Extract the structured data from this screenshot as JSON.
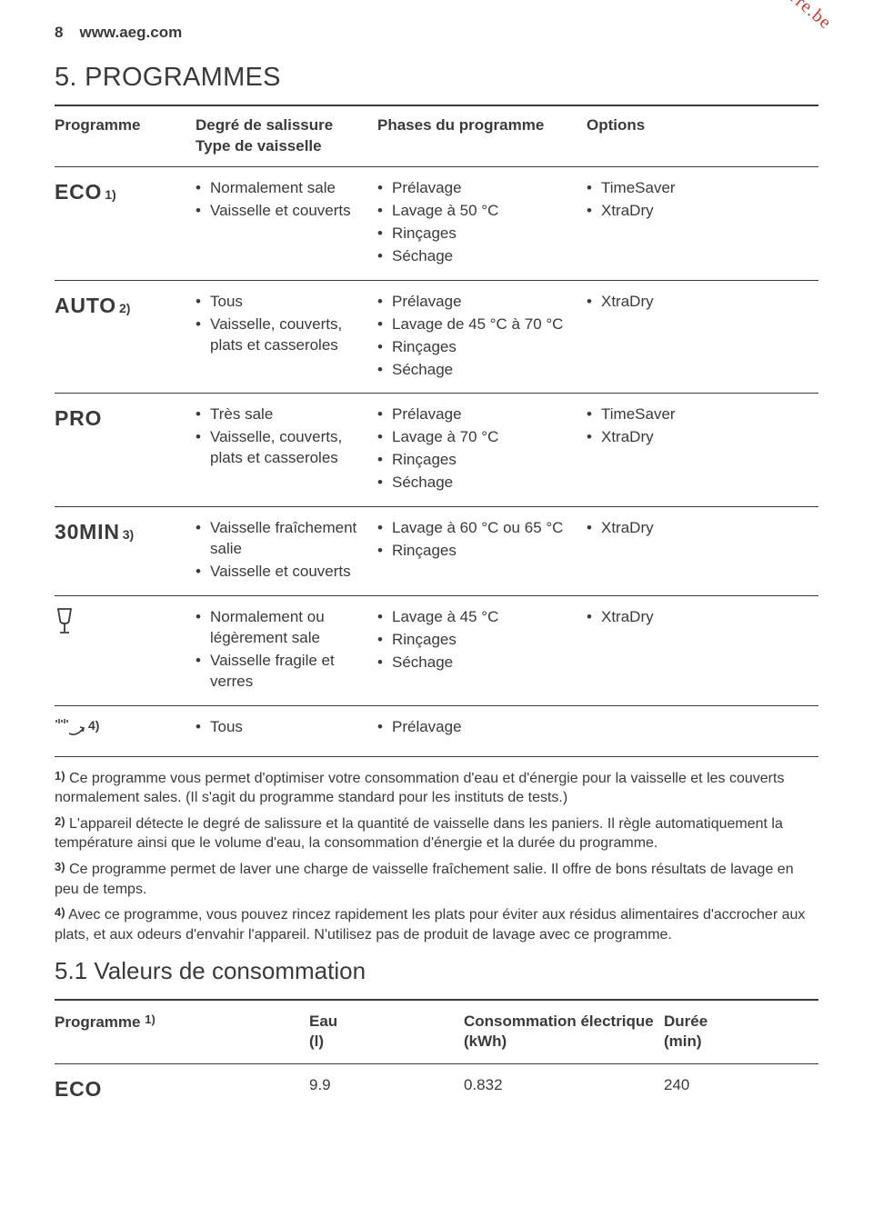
{
  "header": {
    "page_number": "8",
    "site": "www.aeg.com"
  },
  "watermark": "Downloaded from www.vandenborre.be",
  "section_title": "5. PROGRAMMES",
  "table1": {
    "headers": {
      "program": "Programme",
      "soil": "Degré de salissure\nType de vaisselle",
      "phases": "Phases du programme",
      "options": "Options"
    },
    "rows": [
      {
        "name": "ECO",
        "sup": "1)",
        "soil": [
          "Normalement sale",
          "Vaisselle et couverts"
        ],
        "phases": [
          "Prélavage",
          "Lavage à 50 °C",
          "Rinçages",
          "Séchage"
        ],
        "options": [
          "TimeSaver",
          "XtraDry"
        ]
      },
      {
        "name": "AUTO",
        "sup": "2)",
        "soil": [
          "Tous",
          "Vaisselle, couverts, plats et casseroles"
        ],
        "phases": [
          "Prélavage",
          "Lavage de 45 °C à 70 °C",
          "Rinçages",
          "Séchage"
        ],
        "options": [
          "XtraDry"
        ]
      },
      {
        "name": "PRO",
        "sup": "",
        "soil": [
          "Très sale",
          "Vaisselle, couverts, plats et casseroles"
        ],
        "phases": [
          "Prélavage",
          "Lavage à 70 °C",
          "Rinçages",
          "Séchage"
        ],
        "options": [
          "TimeSaver",
          "XtraDry"
        ]
      },
      {
        "name": "30MIN",
        "sup": "3)",
        "soil": [
          "Vaisselle fraîchement salie",
          "Vaisselle et couverts"
        ],
        "phases": [
          "Lavage à 60 °C ou 65 °C",
          "Rinçages"
        ],
        "options": [
          "XtraDry"
        ]
      },
      {
        "icon": "glass",
        "sup": "",
        "soil": [
          "Normalement ou légèrement sale",
          "Vaisselle fragile et verres"
        ],
        "phases": [
          "Lavage à 45 °C",
          "Rinçages",
          "Séchage"
        ],
        "options": [
          "XtraDry"
        ]
      },
      {
        "icon": "rinse",
        "sup": "4)",
        "soil": [
          "Tous"
        ],
        "phases": [
          "Prélavage"
        ],
        "options": []
      }
    ]
  },
  "footnotes": [
    {
      "num": "1)",
      "text": "Ce programme vous permet d'optimiser votre consommation d'eau et d'énergie pour la vaisselle et les couverts normalement sales. (Il s'agit du programme standard pour les instituts de tests.)"
    },
    {
      "num": "2)",
      "text": "L'appareil détecte le degré de salissure et la quantité de vaisselle dans les paniers. Il règle automatiquement la température ainsi que le volume d'eau, la consommation d'énergie et la durée du programme."
    },
    {
      "num": "3)",
      "text": "Ce programme permet de laver une charge de vaisselle fraîchement salie. Il offre de bons résultats de lavage en peu de temps."
    },
    {
      "num": "4)",
      "text": "Avec ce programme, vous pouvez rincez rapidement les plats pour éviter aux résidus alimentaires d'accrocher aux plats, et aux odeurs d'envahir l'appareil. N'utilisez pas de produit de lavage avec ce programme."
    }
  ],
  "subsection_title": "5.1 Valeurs de consommation",
  "table2": {
    "headers": {
      "program": "Programme",
      "program_sup": "1)",
      "water": "Eau\n(l)",
      "energy": "Consommation électrique\n(kWh)",
      "duration": "Durée\n(min)"
    },
    "rows": [
      {
        "name": "ECO",
        "water": "9.9",
        "energy": "0.832",
        "duration": "240"
      }
    ]
  }
}
